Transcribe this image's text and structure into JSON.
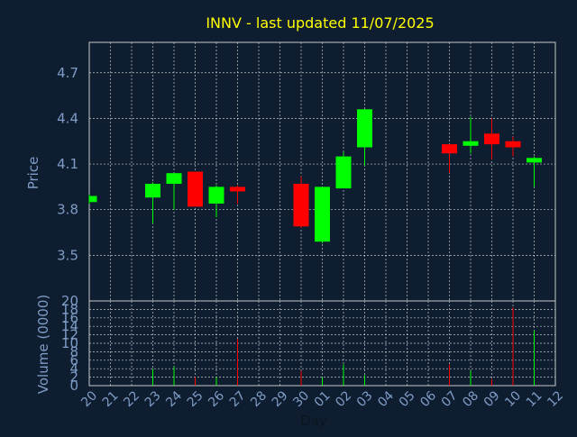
{
  "chart_data": {
    "type": "candlestick",
    "title": "INNV - last updated 11/07/2025",
    "xlabel": "Day",
    "price_panel": {
      "ylabel": "Price",
      "ylim": [
        3.2,
        4.9
      ],
      "yticks": [
        "3.5",
        "3.8",
        "4.1",
        "4.4",
        "4.7"
      ],
      "grid": true
    },
    "volume_panel": {
      "ylabel": "Volume (0000)",
      "ylim": [
        0,
        20
      ],
      "yticks": [
        "0",
        "2",
        "4",
        "6",
        "8",
        "10",
        "12",
        "14",
        "16",
        "18",
        "20"
      ],
      "grid": true
    },
    "x_ticks": [
      "20",
      "21",
      "22",
      "23",
      "24",
      "25",
      "26",
      "27",
      "28",
      "29",
      "30",
      "01",
      "02",
      "03",
      "04",
      "05",
      "06",
      "07",
      "08",
      "09",
      "10",
      "11",
      "12"
    ],
    "candles": [
      {
        "day": "20",
        "open": 3.85,
        "high": 3.9,
        "low": 3.84,
        "close": 3.89,
        "volume": 0
      },
      {
        "day": "23",
        "open": 3.88,
        "high": 3.98,
        "low": 3.71,
        "close": 3.97,
        "volume": 4
      },
      {
        "day": "24",
        "open": 3.97,
        "high": 4.04,
        "low": 3.8,
        "close": 4.04,
        "volume": 4.5
      },
      {
        "day": "25",
        "open": 4.05,
        "high": 4.05,
        "low": 3.82,
        "close": 3.82,
        "volume": 2
      },
      {
        "day": "26",
        "open": 3.84,
        "high": 3.96,
        "low": 3.75,
        "close": 3.95,
        "volume": 2
      },
      {
        "day": "27",
        "open": 3.95,
        "high": 3.96,
        "low": 3.84,
        "close": 3.92,
        "volume": 11
      },
      {
        "day": "30",
        "open": 3.97,
        "high": 4.02,
        "low": 3.68,
        "close": 3.69,
        "volume": 3.5
      },
      {
        "day": "01",
        "open": 3.59,
        "high": 3.95,
        "low": 3.58,
        "close": 3.95,
        "volume": 2
      },
      {
        "day": "02",
        "open": 3.94,
        "high": 4.18,
        "low": 3.94,
        "close": 4.15,
        "volume": 5
      },
      {
        "day": "03",
        "open": 4.21,
        "high": 4.46,
        "low": 4.09,
        "close": 4.46,
        "volume": 2.5
      },
      {
        "day": "07",
        "open": 4.23,
        "high": 4.23,
        "low": 4.04,
        "close": 4.17,
        "volume": 5
      },
      {
        "day": "08",
        "open": 4.22,
        "high": 4.41,
        "low": 4.17,
        "close": 4.25,
        "volume": 3.5
      },
      {
        "day": "09",
        "open": 4.3,
        "high": 4.4,
        "low": 4.13,
        "close": 4.23,
        "volume": 1.5
      },
      {
        "day": "10",
        "open": 4.25,
        "high": 4.28,
        "low": 4.15,
        "close": 4.21,
        "volume": 18.5
      },
      {
        "day": "11",
        "open": 4.11,
        "high": 4.15,
        "low": 3.95,
        "close": 4.14,
        "volume": 13
      }
    ],
    "colors": {
      "background": "#0e1e30",
      "panel_border": "#c8c8c8",
      "grid": "#c8c8c8",
      "up": "#00ff00",
      "down": "#ff0000",
      "title": "#ffff00",
      "axis_label": "#7f9cc6"
    }
  }
}
